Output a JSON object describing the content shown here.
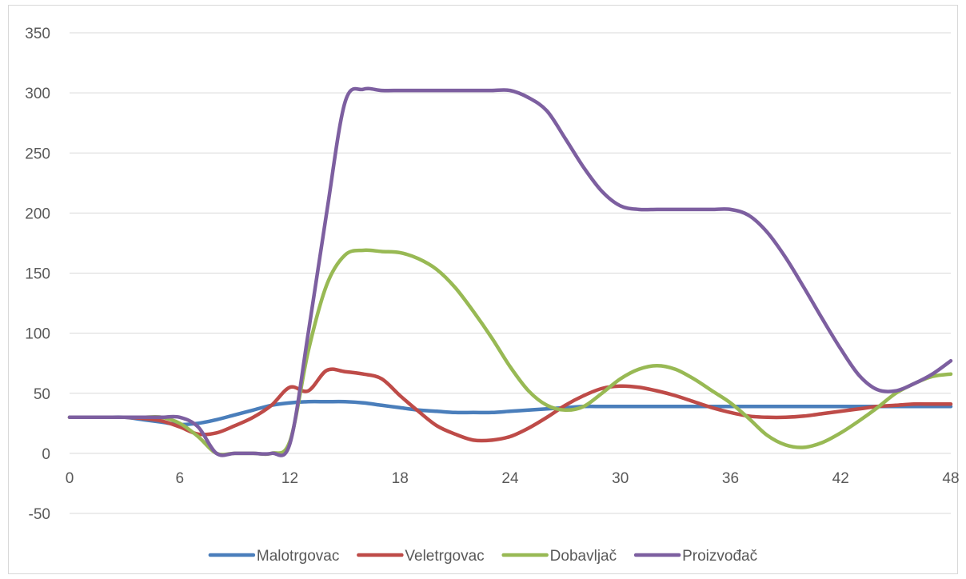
{
  "chart_data": {
    "type": "line",
    "title": "",
    "xlabel": "",
    "ylabel": "",
    "xlim": [
      0,
      48
    ],
    "ylim": [
      -50,
      350
    ],
    "x_ticks": [
      0,
      6,
      12,
      18,
      24,
      30,
      36,
      42,
      48
    ],
    "y_ticks": [
      -50,
      0,
      50,
      100,
      150,
      200,
      250,
      300,
      350
    ],
    "grid": "horizontal",
    "legend_position": "bottom",
    "x": [
      0,
      1,
      2,
      3,
      4,
      5,
      6,
      7,
      8,
      9,
      10,
      11,
      12,
      13,
      14,
      15,
      16,
      17,
      18,
      19,
      20,
      21,
      22,
      23,
      24,
      25,
      26,
      27,
      28,
      29,
      30,
      31,
      32,
      33,
      34,
      35,
      36,
      37,
      38,
      39,
      40,
      41,
      42,
      43,
      44,
      45,
      46,
      47,
      48
    ],
    "series": [
      {
        "name": "Malotrgovac",
        "color": "#4a7ebb",
        "values": [
          30,
          30,
          30,
          30,
          28,
          26,
          24,
          25,
          28,
          32,
          36,
          40,
          42,
          43,
          43,
          43,
          42,
          40,
          38,
          36,
          35,
          34,
          34,
          34,
          35,
          36,
          37,
          38,
          39,
          39,
          39,
          39,
          39,
          39,
          39,
          39,
          39,
          39,
          39,
          39,
          39,
          39,
          39,
          39,
          39,
          39,
          39,
          39,
          39
        ]
      },
      {
        "name": "Veletrgovac",
        "color": "#be4b48",
        "values": [
          30,
          30,
          30,
          30,
          29,
          27,
          22,
          16,
          17,
          23,
          30,
          40,
          55,
          52,
          69,
          68,
          66,
          62,
          48,
          35,
          23,
          16,
          11,
          11,
          14,
          21,
          30,
          40,
          48,
          54,
          56,
          55,
          52,
          48,
          43,
          38,
          34,
          31,
          30,
          30,
          31,
          33,
          35,
          37,
          39,
          40,
          41,
          41,
          41
        ]
      },
      {
        "name": "Dobavljač",
        "color": "#98b954",
        "values": [
          30,
          30,
          30,
          30,
          30,
          30,
          25,
          14,
          0,
          0,
          0,
          0,
          10,
          85,
          140,
          165,
          169,
          168,
          167,
          162,
          153,
          138,
          118,
          96,
          72,
          52,
          40,
          36,
          39,
          50,
          62,
          70,
          73,
          70,
          62,
          52,
          42,
          29,
          15,
          7,
          5,
          9,
          17,
          27,
          38,
          50,
          58,
          64,
          66
        ]
      },
      {
        "name": "Proizvođač",
        "color": "#7d5fa0",
        "values": [
          30,
          30,
          30,
          30,
          30,
          30,
          30,
          22,
          0,
          0,
          0,
          0,
          8,
          100,
          200,
          292,
          303,
          302,
          302,
          302,
          302,
          302,
          302,
          302,
          302,
          296,
          285,
          262,
          238,
          218,
          206,
          203,
          203,
          203,
          203,
          203,
          203,
          198,
          184,
          163,
          138,
          112,
          87,
          65,
          53,
          52,
          58,
          66,
          77
        ]
      }
    ]
  }
}
